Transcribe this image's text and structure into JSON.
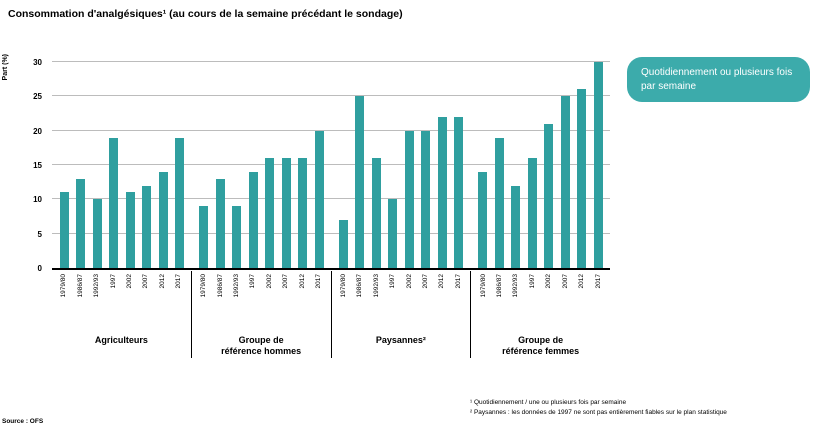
{
  "title": "Consommation d'analgésiques¹ (au cours de la semaine précédant le sondage)",
  "legend_badge": "Quotidiennement ou plusieurs fois par semaine",
  "source": "Source : OFS",
  "footnotes": [
    "¹ Quotidiennement / une ou plusieurs fois par semaine",
    "² Paysannes : les données de 1997 ne sont pas entièrement fiables sur le plan statistique"
  ],
  "colors": {
    "bar": "#2f9f9f",
    "badge": "#3cabab"
  },
  "chart_data": {
    "type": "bar",
    "title": "Consommation d'analgésiques (au cours de la semaine précédant le sondage)",
    "xlabel": "",
    "ylabel": "Part (%)",
    "ylim": [
      0,
      30
    ],
    "yticks": [
      0,
      5,
      10,
      15,
      20,
      25,
      30
    ],
    "grid": true,
    "legend_position": "top-right",
    "years": [
      "1979/80",
      "1986/87",
      "1992/93",
      "1997",
      "2002",
      "2007",
      "2012",
      "2017"
    ],
    "groups": [
      {
        "label": "Agriculteurs",
        "values": [
          11,
          13,
          10,
          19,
          11,
          12,
          14,
          19
        ]
      },
      {
        "label": "Groupe de\nréférence hommes",
        "values": [
          9,
          13,
          9,
          14,
          16,
          16,
          16,
          20
        ]
      },
      {
        "label": "Paysannes²",
        "values": [
          7,
          25,
          16,
          10,
          20,
          20,
          22,
          22
        ]
      },
      {
        "label": "Groupe de\nréférence femmes",
        "values": [
          14,
          19,
          12,
          16,
          21,
          25,
          26,
          30
        ]
      }
    ]
  }
}
